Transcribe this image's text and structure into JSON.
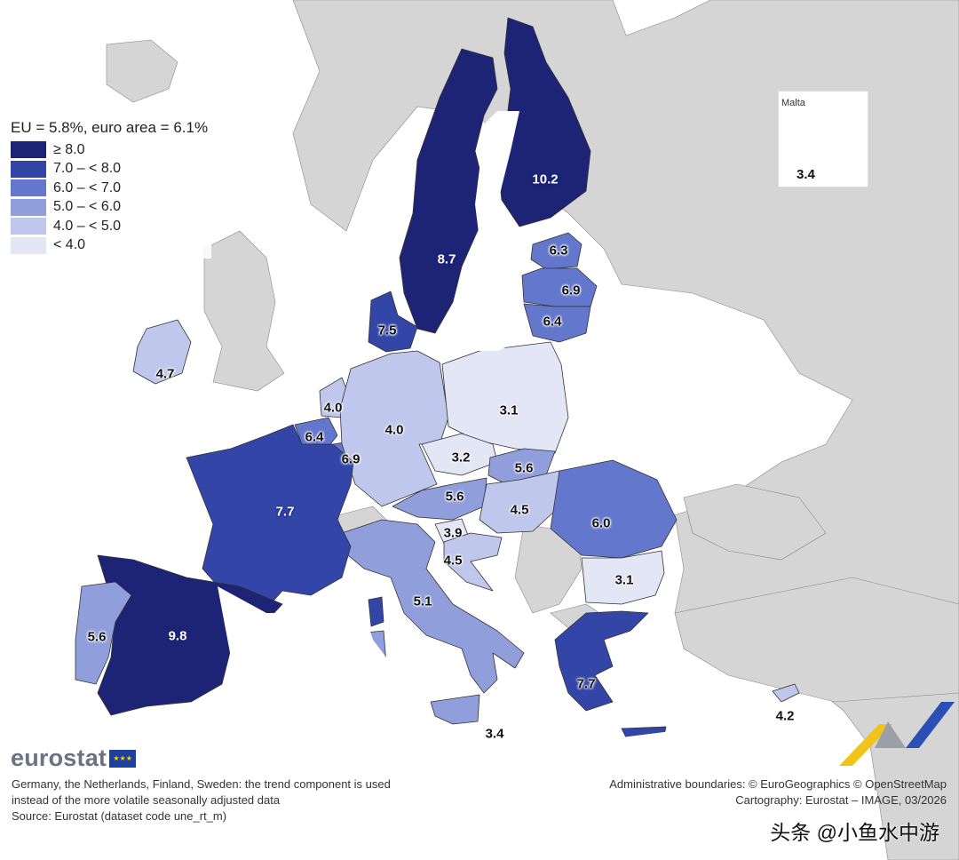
{
  "legend": {
    "title": "EU = 5.8%, euro area = 6.1%",
    "items": [
      {
        "label": "≥ 8.0",
        "color": "#1d2475"
      },
      {
        "label": "7.0 – < 8.0",
        "color": "#3346a8"
      },
      {
        "label": "6.0 – < 7.0",
        "color": "#6377cc"
      },
      {
        "label": "5.0 – < 6.0",
        "color": "#909fdb"
      },
      {
        "label": "4.0 – < 5.0",
        "color": "#bfc7ec"
      },
      {
        "label": "< 4.0",
        "color": "#e3e6f5"
      }
    ]
  },
  "colors": {
    "non_eu": "#d5d5d5",
    "sea": "#ffffff",
    "border": "#333333"
  },
  "inset": {
    "name": "Malta",
    "value": "3.4"
  },
  "countries": [
    {
      "name": "Sweden",
      "value": "8.7"
    },
    {
      "name": "Finland",
      "value": "10.2"
    },
    {
      "name": "Estonia",
      "value": "6.3"
    },
    {
      "name": "Latvia",
      "value": "6.9"
    },
    {
      "name": "Lithuania",
      "value": "6.4"
    },
    {
      "name": "Denmark",
      "value": "7.5"
    },
    {
      "name": "Ireland",
      "value": "4.7"
    },
    {
      "name": "Netherlands",
      "value": "4.0"
    },
    {
      "name": "Belgium",
      "value": "6.4"
    },
    {
      "name": "Luxembourg",
      "value": "6.9"
    },
    {
      "name": "Germany",
      "value": "4.0"
    },
    {
      "name": "Poland",
      "value": "3.1"
    },
    {
      "name": "Czechia",
      "value": "3.2"
    },
    {
      "name": "Slovakia",
      "value": "5.6"
    },
    {
      "name": "Austria",
      "value": "5.6"
    },
    {
      "name": "Hungary",
      "value": "4.5"
    },
    {
      "name": "Romania",
      "value": "6.0"
    },
    {
      "name": "Slovenia",
      "value": "3.9"
    },
    {
      "name": "Croatia",
      "value": "4.5"
    },
    {
      "name": "Italy",
      "value": "5.1"
    },
    {
      "name": "France",
      "value": "7.7"
    },
    {
      "name": "Spain",
      "value": "9.8"
    },
    {
      "name": "Portugal",
      "value": "5.6"
    },
    {
      "name": "Bulgaria",
      "value": "3.1"
    },
    {
      "name": "Greece",
      "value": "7.7"
    },
    {
      "name": "Cyprus",
      "value": "4.2"
    },
    {
      "name": "Malta",
      "value": "3.4"
    }
  ],
  "logo": "eurostat",
  "notes": [
    "Germany, the Netherlands, Finland, Sweden: the trend component is used",
    "instead of the more volatile seasonally adjusted data",
    "Source: Eurostat (dataset code une_rt_m)"
  ],
  "credits": [
    "Administrative boundaries: © EuroGeographics © OpenStreetMap",
    "Cartography: Eurostat – IMAGE, 03/2026"
  ],
  "watermark": "头条 @小鱼水中游"
}
